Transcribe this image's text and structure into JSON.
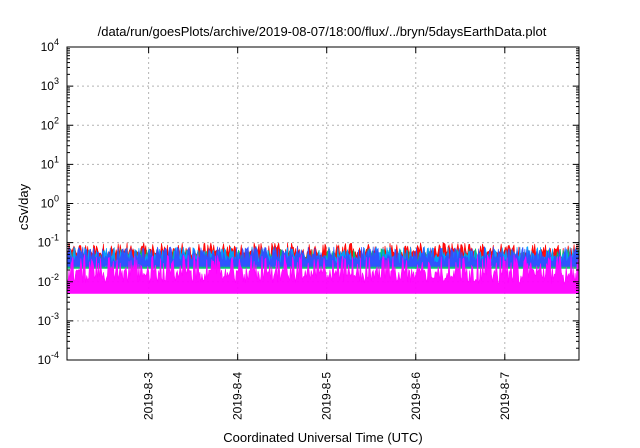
{
  "chart_data": {
    "type": "area",
    "title": "/data/run/goesPlots/archive/2019-08-07/18:00/flux/../bryn/5daysEarthData.plot",
    "xlabel": "Coordinated Universal Time (UTC)",
    "ylabel": "cSv/day",
    "yscale": "log",
    "ylim": [
      0.0001,
      10000
    ],
    "xlim": [
      "2019-08-02 02:00",
      "2019-08-07 20:00"
    ],
    "grid": true,
    "legend": "none",
    "y_ticks": [
      {
        "value": 0.0001,
        "base": "10",
        "exp": "-4"
      },
      {
        "value": 0.001,
        "base": "10",
        "exp": "-3"
      },
      {
        "value": 0.01,
        "base": "10",
        "exp": "-2"
      },
      {
        "value": 0.1,
        "base": "10",
        "exp": "-1"
      },
      {
        "value": 1,
        "base": "10",
        "exp": "0"
      },
      {
        "value": 10,
        "base": "10",
        "exp": "1"
      },
      {
        "value": 100,
        "base": "10",
        "exp": "2"
      },
      {
        "value": 1000,
        "base": "10",
        "exp": "3"
      },
      {
        "value": 10000,
        "base": "10",
        "exp": "4"
      }
    ],
    "x_ticks": [
      {
        "value": "2019-08-03 00:00",
        "label": "2019-8-3"
      },
      {
        "value": "2019-08-04 00:00",
        "label": "2019-8-4"
      },
      {
        "value": "2019-08-05 00:00",
        "label": "2019-8-5"
      },
      {
        "value": "2019-08-06 00:00",
        "label": "2019-8-6"
      },
      {
        "value": "2019-08-07 00:00",
        "label": "2019-8-7"
      }
    ],
    "series": [
      {
        "color": "#ff0000",
        "min": 0.03,
        "max": 0.1,
        "typical": 0.06
      },
      {
        "color": "#00c070",
        "min": 0.015,
        "max": 0.07,
        "typical": 0.04
      },
      {
        "color": "#00a0ff",
        "min": 0.02,
        "max": 0.08,
        "typical": 0.05
      },
      {
        "color": "#3050ff",
        "min": 0.02,
        "max": 0.08,
        "typical": 0.045
      },
      {
        "color": "#ff00ff",
        "min": 0.005,
        "max": 0.05,
        "typical": 0.01
      }
    ]
  }
}
